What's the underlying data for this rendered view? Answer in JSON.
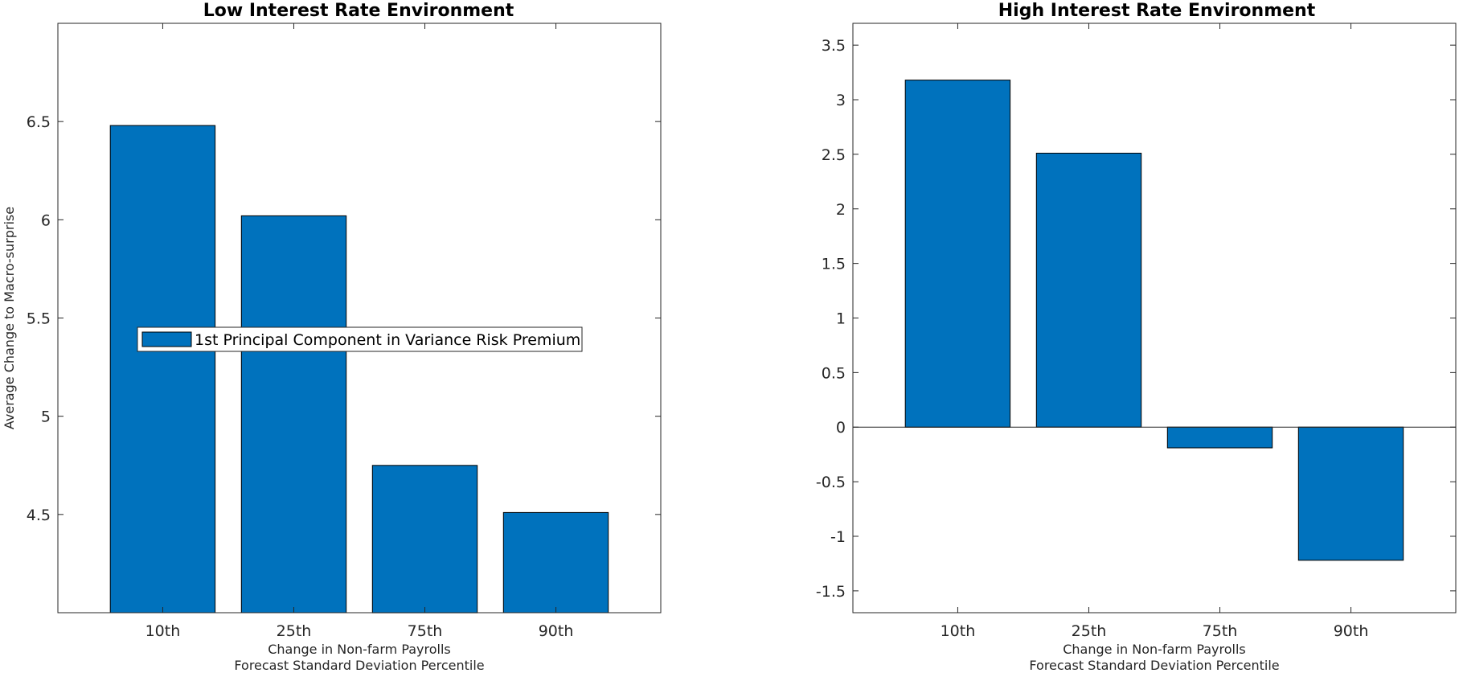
{
  "chart_data": [
    {
      "type": "bar",
      "title": "Low Interest Rate Environment",
      "categories": [
        "10th",
        "25th",
        "75th",
        "90th"
      ],
      "series": [
        {
          "name": "1st Principal Component in Variance Risk Premium",
          "values": [
            6.48,
            6.02,
            4.75,
            4.51
          ]
        }
      ],
      "xlabel": [
        "Change in Non-farm Payrolls",
        "Forecast Standard Deviation Percentile"
      ],
      "ylabel": "Average Change to Macro-surprise",
      "ylim": [
        4.0,
        7.0
      ],
      "yticks": [
        4.5,
        5,
        5.5,
        6,
        6.5
      ],
      "ytick_labels": [
        "4.5",
        "5",
        "5.5",
        "6",
        "6.5"
      ],
      "grid": false,
      "legend": {
        "show": true,
        "placement": "center-left"
      },
      "bar_color": "#0072BD"
    },
    {
      "type": "bar",
      "title": "High Interest Rate Environment",
      "categories": [
        "10th",
        "25th",
        "75th",
        "90th"
      ],
      "series": [
        {
          "name": "1st Principal Component in Variance Risk Premium",
          "values": [
            3.18,
            2.51,
            -0.19,
            -1.22
          ]
        }
      ],
      "xlabel": [
        "Change in Non-farm Payrolls",
        "Forecast Standard Deviation Percentile"
      ],
      "ylabel": "",
      "ylim": [
        -1.7,
        3.7
      ],
      "yticks": [
        -1.5,
        -1,
        -0.5,
        0,
        0.5,
        1,
        1.5,
        2,
        2.5,
        3,
        3.5
      ],
      "ytick_labels": [
        "-1.5",
        "-1",
        "-0.5",
        "0",
        "0.5",
        "1",
        "1.5",
        "2",
        "2.5",
        "3",
        "3.5"
      ],
      "grid": false,
      "legend": {
        "show": false,
        "placement": ""
      },
      "bar_color": "#0072BD"
    }
  ]
}
